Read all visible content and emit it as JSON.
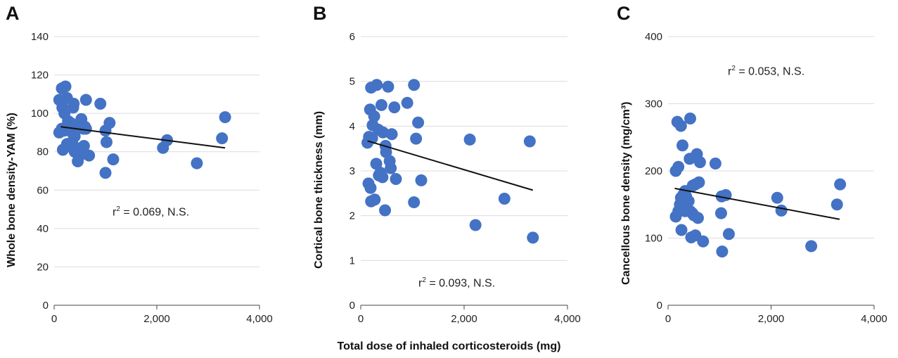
{
  "shared_xlabel": "Total dose of inhaled corticosteroids (mg)",
  "point_color": "#4472C4",
  "chart_data": [
    {
      "type": "scatter",
      "panel_letter": "A",
      "ylabel": "Whole bone density-YAM (%)",
      "r2_prefix": "r",
      "r2_sup": "2",
      "r2_value": " = 0.069, N.S.",
      "xlim": [
        0,
        4000
      ],
      "ylim": [
        0,
        140
      ],
      "xticks": [
        "0",
        "2,000",
        "4,000"
      ],
      "xtick_values": [
        0,
        2000,
        4000
      ],
      "yticks": [
        "0",
        "20",
        "40",
        "60",
        "80",
        "100",
        "120",
        "140"
      ],
      "ytick_values": [
        0,
        20,
        40,
        60,
        80,
        100,
        120,
        140
      ],
      "grid": "horizontal",
      "trendline": [
        [
          130,
          93
        ],
        [
          3330,
          82
        ]
      ],
      "points": [
        [
          100,
          107
        ],
        [
          150,
          113
        ],
        [
          220,
          114
        ],
        [
          250,
          108
        ],
        [
          160,
          103
        ],
        [
          200,
          100
        ],
        [
          380,
          105
        ],
        [
          370,
          103
        ],
        [
          620,
          107
        ],
        [
          900,
          105
        ],
        [
          100,
          90
        ],
        [
          150,
          92
        ],
        [
          200,
          91
        ],
        [
          270,
          96
        ],
        [
          320,
          95
        ],
        [
          350,
          90
        ],
        [
          400,
          88
        ],
        [
          450,
          94
        ],
        [
          530,
          97
        ],
        [
          570,
          92
        ],
        [
          620,
          92
        ],
        [
          600,
          93
        ],
        [
          170,
          81
        ],
        [
          250,
          84
        ],
        [
          300,
          83
        ],
        [
          350,
          85
        ],
        [
          400,
          80
        ],
        [
          430,
          82
        ],
        [
          460,
          75
        ],
        [
          500,
          78
        ],
        [
          550,
          79
        ],
        [
          580,
          83
        ],
        [
          680,
          78
        ],
        [
          1000,
          91
        ],
        [
          1080,
          95
        ],
        [
          1020,
          85
        ],
        [
          1150,
          76
        ],
        [
          1000,
          69
        ],
        [
          2120,
          82
        ],
        [
          2200,
          86
        ],
        [
          2780,
          74
        ],
        [
          3270,
          87
        ],
        [
          3330,
          98
        ]
      ]
    },
    {
      "type": "scatter",
      "panel_letter": "B",
      "ylabel": "Cortical bone thickness (mm)",
      "r2_prefix": "r",
      "r2_sup": "2",
      "r2_value": " = 0.093, N.S.",
      "xlim": [
        0,
        4000
      ],
      "ylim": [
        0,
        6
      ],
      "xticks": [
        "0",
        "2,000",
        "4,000"
      ],
      "xtick_values": [
        0,
        2000,
        4000
      ],
      "yticks": [
        "0",
        "1",
        "2",
        "3",
        "4",
        "5",
        "6"
      ],
      "ytick_values": [
        0,
        1,
        2,
        3,
        4,
        5,
        6
      ],
      "grid": "horizontal",
      "trendline": [
        [
          130,
          3.67
        ],
        [
          3330,
          2.57
        ]
      ],
      "points": [
        [
          200,
          4.86
        ],
        [
          310,
          4.92
        ],
        [
          530,
          4.88
        ],
        [
          1030,
          4.92
        ],
        [
          180,
          4.37
        ],
        [
          400,
          4.47
        ],
        [
          650,
          4.42
        ],
        [
          900,
          4.52
        ],
        [
          260,
          4.22
        ],
        [
          230,
          4.02
        ],
        [
          340,
          3.92
        ],
        [
          430,
          3.86
        ],
        [
          600,
          3.82
        ],
        [
          1110,
          4.08
        ],
        [
          160,
          3.76
        ],
        [
          130,
          3.63
        ],
        [
          220,
          3.73
        ],
        [
          480,
          3.56
        ],
        [
          490,
          3.42
        ],
        [
          1070,
          3.72
        ],
        [
          560,
          3.22
        ],
        [
          300,
          3.16
        ],
        [
          580,
          3.06
        ],
        [
          380,
          2.96
        ],
        [
          420,
          2.86
        ],
        [
          350,
          2.9
        ],
        [
          680,
          2.82
        ],
        [
          1170,
          2.79
        ],
        [
          150,
          2.72
        ],
        [
          190,
          2.62
        ],
        [
          270,
          2.36
        ],
        [
          200,
          2.32
        ],
        [
          470,
          2.12
        ],
        [
          1030,
          2.3
        ],
        [
          2110,
          3.7
        ],
        [
          3270,
          3.66
        ],
        [
          2780,
          2.38
        ],
        [
          2220,
          1.79
        ],
        [
          3330,
          1.51
        ]
      ]
    },
    {
      "type": "scatter",
      "panel_letter": "C",
      "ylabel": "Cancellous bone density (mg/cm³)",
      "r2_prefix": "r",
      "r2_sup": "2",
      "r2_value": " = 0.053, N.S.",
      "xlim": [
        0,
        4000
      ],
      "ylim": [
        0,
        400
      ],
      "xticks": [
        "0",
        "2,000",
        "4,000"
      ],
      "xtick_values": [
        0,
        2000,
        4000
      ],
      "yticks": [
        "0",
        "100",
        "200",
        "300",
        "400"
      ],
      "ytick_values": [
        0,
        100,
        200,
        300,
        400
      ],
      "grid": "horizontal",
      "trendline": [
        [
          130,
          174
        ],
        [
          3330,
          128
        ]
      ],
      "points": [
        [
          180,
          273
        ],
        [
          250,
          267
        ],
        [
          430,
          278
        ],
        [
          280,
          238
        ],
        [
          420,
          218
        ],
        [
          560,
          225
        ],
        [
          620,
          213
        ],
        [
          920,
          211
        ],
        [
          150,
          200
        ],
        [
          200,
          206
        ],
        [
          330,
          170
        ],
        [
          300,
          165
        ],
        [
          480,
          178
        ],
        [
          530,
          180
        ],
        [
          600,
          183
        ],
        [
          250,
          160
        ],
        [
          230,
          150
        ],
        [
          350,
          162
        ],
        [
          300,
          145
        ],
        [
          330,
          140
        ],
        [
          200,
          140
        ],
        [
          150,
          132
        ],
        [
          400,
          155
        ],
        [
          430,
          140
        ],
        [
          470,
          137
        ],
        [
          500,
          134
        ],
        [
          580,
          130
        ],
        [
          260,
          112
        ],
        [
          450,
          101
        ],
        [
          530,
          104
        ],
        [
          680,
          95
        ],
        [
          1040,
          162
        ],
        [
          1120,
          164
        ],
        [
          1030,
          137
        ],
        [
          1180,
          106
        ],
        [
          1050,
          80
        ],
        [
          2120,
          160
        ],
        [
          2200,
          141
        ],
        [
          2780,
          88
        ],
        [
          3280,
          150
        ],
        [
          3340,
          180
        ]
      ]
    }
  ]
}
